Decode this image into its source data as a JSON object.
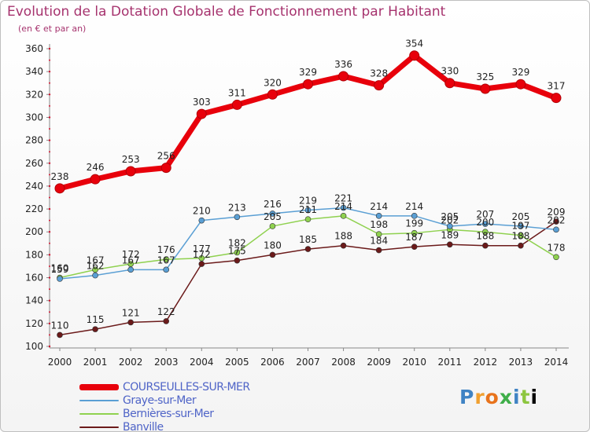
{
  "header": {
    "title": "Evolution de la Dotation Globale de Fonctionnement par Habitant",
    "subtitle": "(en € et par an)"
  },
  "logo": {
    "text": "Proxiti"
  },
  "chart_data": {
    "type": "line",
    "categories": [
      "2000",
      "2001",
      "2002",
      "2003",
      "2004",
      "2005",
      "2006",
      "2007",
      "2008",
      "2009",
      "2010",
      "2011",
      "2012",
      "2013",
      "2014"
    ],
    "y_ticks": [
      100,
      120,
      140,
      160,
      180,
      200,
      220,
      240,
      260,
      280,
      300,
      320,
      340,
      360
    ],
    "ylim": [
      100,
      360
    ],
    "grid": false,
    "legend_position": "bottom-left",
    "series": [
      {
        "name": "COURSEULLES-SUR-MER",
        "color": "#e8000b",
        "emphasis": true,
        "values": [
          238,
          246,
          253,
          256,
          303,
          311,
          320,
          329,
          336,
          328,
          354,
          330,
          325,
          329,
          317
        ]
      },
      {
        "name": "Graye-sur-Mer",
        "color": "#5a9fd4",
        "values": [
          159,
          162,
          167,
          167,
          210,
          213,
          216,
          219,
          221,
          214,
          214,
          205,
          207,
          205,
          202
        ]
      },
      {
        "name": "Bernières-sur-Mer",
        "color": "#8fd14f",
        "values": [
          160,
          167,
          172,
          176,
          177,
          182,
          205,
          211,
          214,
          198,
          199,
          202,
          200,
          197,
          178
        ]
      },
      {
        "name": "Banville",
        "color": "#6b1a1a",
        "values": [
          110,
          115,
          121,
          122,
          172,
          175,
          180,
          185,
          188,
          184,
          187,
          189,
          188,
          188,
          209
        ]
      }
    ]
  }
}
